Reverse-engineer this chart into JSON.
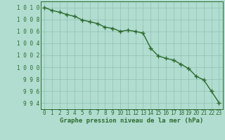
{
  "x": [
    0,
    1,
    2,
    3,
    4,
    5,
    6,
    7,
    8,
    9,
    10,
    11,
    12,
    13,
    14,
    15,
    16,
    17,
    18,
    19,
    20,
    21,
    22,
    23
  ],
  "y": [
    1010,
    1009.5,
    1009.2,
    1008.8,
    1008.5,
    1007.9,
    1007.6,
    1007.3,
    1006.7,
    1006.5,
    1006.0,
    1006.2,
    1006.0,
    1005.7,
    1003.2,
    1001.9,
    1001.5,
    1001.2,
    1000.5,
    999.8,
    998.5,
    997.9,
    996.0,
    994.1
  ],
  "line_color": "#2d6a2d",
  "marker": "+",
  "marker_color": "#2d6a2d",
  "bg_color": "#b0ddd0",
  "grid_color": "#90c0b0",
  "xlabel": "Graphe pression niveau de la mer (hPa)",
  "ylim": [
    993,
    1011
  ],
  "xlim": [
    -0.5,
    23.5
  ],
  "yticks": [
    994,
    996,
    998,
    1000,
    1002,
    1004,
    1006,
    1008,
    1010
  ],
  "ytick_labels": [
    "994",
    "996",
    "998",
    "1000",
    "1002",
    "1004",
    "1006",
    "1008",
    "1010"
  ],
  "xticks": [
    0,
    1,
    2,
    3,
    4,
    5,
    6,
    7,
    8,
    9,
    10,
    11,
    12,
    13,
    14,
    15,
    16,
    17,
    18,
    19,
    20,
    21,
    22,
    23
  ],
  "xlabel_fontsize": 6.5,
  "tick_fontsize": 5.5,
  "line_width": 1.0,
  "marker_size": 4
}
